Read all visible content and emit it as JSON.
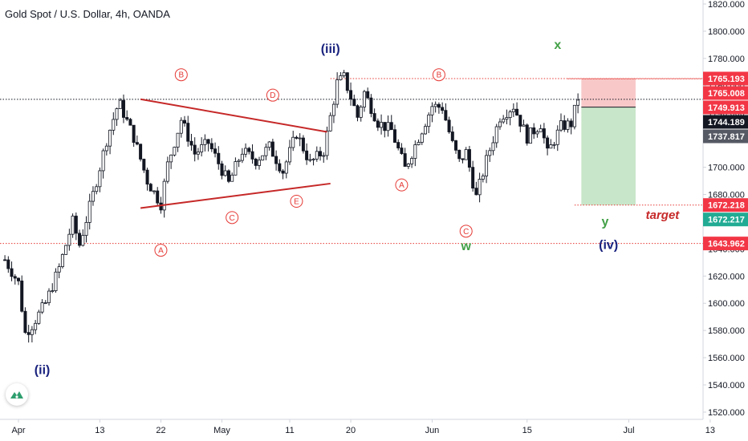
{
  "header": {
    "symbol_title": "Gold Spot / U.S. Dollar, 4h, OANDA"
  },
  "logo": {
    "icon": "tradingview-logo-icon"
  },
  "colors": {
    "bull": "#131722",
    "bear": "#131722",
    "trendline": "#c62828",
    "circle_label": "#e53935",
    "blue_label": "#1a237e",
    "green_label": "#43a047",
    "level_line": "#e53935",
    "stop_zone": "#f8c8c8",
    "target_zone": "#c8e6c9",
    "badge_red": "#f23645",
    "badge_green": "#22ab94",
    "badge_dark": "#131722"
  },
  "chart_data": {
    "type": "candlestick",
    "timeframe": "4h",
    "ylim": [
      1512,
      1822
    ],
    "x_ticks": [
      {
        "day": 0,
        "label": "Apr"
      },
      {
        "day": 12,
        "label": "13"
      },
      {
        "day": 21,
        "label": "22"
      },
      {
        "day": 30,
        "label": "May"
      },
      {
        "day": 40,
        "label": "11"
      },
      {
        "day": 49,
        "label": "20"
      },
      {
        "day": 61,
        "label": "Jun"
      },
      {
        "day": 75,
        "label": "15"
      },
      {
        "day": 90,
        "label": "Jul"
      },
      {
        "day": 102,
        "label": "13"
      }
    ],
    "y_ticks": [
      1520,
      1540,
      1560,
      1580,
      1600,
      1620,
      1640,
      1660,
      1680,
      1700,
      1720,
      1740,
      1760,
      1780,
      1800,
      1820
    ],
    "price_path": [
      {
        "day": -2,
        "price": 1632
      },
      {
        "day": 0,
        "price": 1615
      },
      {
        "day": 1,
        "price": 1578
      },
      {
        "day": 2,
        "price": 1584
      },
      {
        "day": 4,
        "price": 1600
      },
      {
        "day": 6,
        "price": 1626
      },
      {
        "day": 8,
        "price": 1660
      },
      {
        "day": 9,
        "price": 1643
      },
      {
        "day": 11,
        "price": 1680
      },
      {
        "day": 13,
        "price": 1720
      },
      {
        "day": 14.8,
        "price": 1748
      },
      {
        "day": 17,
        "price": 1722
      },
      {
        "day": 19,
        "price": 1690
      },
      {
        "day": 21,
        "price": 1673
      },
      {
        "day": 22,
        "price": 1702
      },
      {
        "day": 24,
        "price": 1735
      },
      {
        "day": 26,
        "price": 1710
      },
      {
        "day": 28,
        "price": 1718
      },
      {
        "day": 31,
        "price": 1688
      },
      {
        "day": 33,
        "price": 1712
      },
      {
        "day": 35,
        "price": 1705
      },
      {
        "day": 37,
        "price": 1715
      },
      {
        "day": 39,
        "price": 1697
      },
      {
        "day": 41,
        "price": 1725
      },
      {
        "day": 43,
        "price": 1703
      },
      {
        "day": 45,
        "price": 1712
      },
      {
        "day": 47,
        "price": 1762
      },
      {
        "day": 48,
        "price": 1766
      },
      {
        "day": 50,
        "price": 1737
      },
      {
        "day": 51,
        "price": 1755
      },
      {
        "day": 53,
        "price": 1733
      },
      {
        "day": 55,
        "price": 1727
      },
      {
        "day": 57,
        "price": 1699
      },
      {
        "day": 59,
        "price": 1722
      },
      {
        "day": 61,
        "price": 1745
      },
      {
        "day": 62.5,
        "price": 1744
      },
      {
        "day": 64,
        "price": 1717
      },
      {
        "day": 65,
        "price": 1704
      },
      {
        "day": 66,
        "price": 1711
      },
      {
        "day": 67.5,
        "price": 1678
      },
      {
        "day": 69,
        "price": 1705
      },
      {
        "day": 71,
        "price": 1737
      },
      {
        "day": 73,
        "price": 1745
      },
      {
        "day": 75,
        "price": 1722
      },
      {
        "day": 77,
        "price": 1732
      },
      {
        "day": 78,
        "price": 1710
      },
      {
        "day": 80,
        "price": 1730
      },
      {
        "day": 81.5,
        "price": 1732
      },
      {
        "day": 82.5,
        "price": 1751
      }
    ],
    "levels": [
      {
        "name": "level-1765-193",
        "price": 1765.193,
        "style": "dotted",
        "color": "#e53935",
        "label": "1765.193",
        "badge": "#f23645"
      },
      {
        "name": "level-1765-008",
        "price": 1765.008,
        "style": "dotted",
        "color": "#e53935",
        "label": "1765.008",
        "badge": "#f23645"
      },
      {
        "name": "level-1749-913",
        "price": 1749.913,
        "style": "dotted",
        "color": "#131722",
        "label": "1749.913",
        "badge": "#f23645"
      },
      {
        "name": "level-1744-189",
        "price": 1744.189,
        "style": "none",
        "color": "#131722",
        "label": "1744.189",
        "badge": "#131722"
      },
      {
        "name": "level-1737-817",
        "price": 1737.817,
        "style": "none",
        "color": "#131722",
        "label": "1737.817",
        "badge": "#555963"
      },
      {
        "name": "level-1672-218",
        "price": 1672.218,
        "style": "dotted",
        "color": "#e53935",
        "label": "1672.218",
        "badge": "#f23645"
      },
      {
        "name": "level-1672-217",
        "price": 1672.217,
        "style": "none",
        "color": "#22ab94",
        "label": "1672.217",
        "badge": "#22ab94"
      },
      {
        "name": "level-1643-962",
        "price": 1643.962,
        "style": "dotted",
        "color": "#e53935",
        "label": "1643.962",
        "badge": "#f23645"
      }
    ],
    "position": {
      "day_start": 83,
      "day_end": 91,
      "entry": 1744.2,
      "stop": 1765.2,
      "target": 1672.2
    },
    "trendlines": [
      {
        "from": {
          "day": 18,
          "price": 1750
        },
        "to": {
          "day": 45.5,
          "price": 1726
        }
      },
      {
        "from": {
          "day": 18,
          "price": 1670
        },
        "to": {
          "day": 46,
          "price": 1688
        }
      }
    ],
    "circle_labels": [
      {
        "text": "B",
        "day": 24,
        "price": 1768
      },
      {
        "text": "D",
        "day": 37.5,
        "price": 1753
      },
      {
        "text": "A",
        "day": 21,
        "price": 1639
      },
      {
        "text": "C",
        "day": 31.5,
        "price": 1663
      },
      {
        "text": "E",
        "day": 41,
        "price": 1675
      },
      {
        "text": "B",
        "day": 62,
        "price": 1768
      },
      {
        "text": "A",
        "day": 56.5,
        "price": 1687
      },
      {
        "text": "C",
        "day": 66,
        "price": 1653
      }
    ],
    "wave_labels": [
      {
        "text": "(iii)",
        "day": 46,
        "price": 1784,
        "color": "#1a237e"
      },
      {
        "text": "(ii)",
        "day": 3.5,
        "price": 1548,
        "color": "#1a237e"
      },
      {
        "text": "(iv)",
        "day": 87,
        "price": 1640,
        "color": "#1a237e"
      },
      {
        "text": "x",
        "day": 79.5,
        "price": 1787,
        "color": "#43a047"
      },
      {
        "text": "w",
        "day": 66,
        "price": 1639,
        "color": "#43a047"
      },
      {
        "text": "y",
        "day": 86.5,
        "price": 1657,
        "color": "#43a047"
      }
    ],
    "annotation": {
      "text": "target",
      "day": 92.5,
      "price": 1662,
      "color": "#c62828"
    }
  }
}
